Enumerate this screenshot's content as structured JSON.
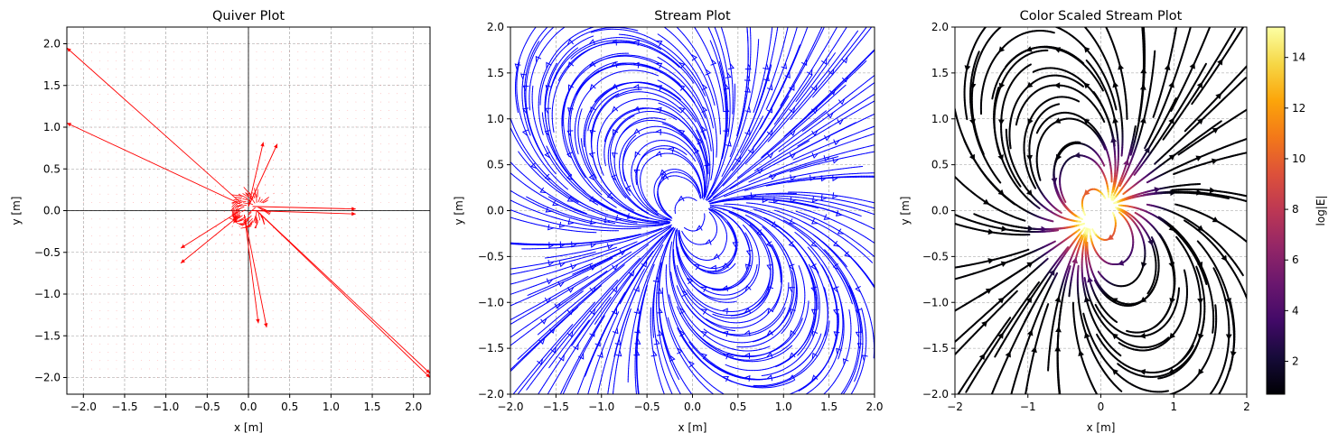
{
  "chart_data": [
    {
      "type": "quiver",
      "title": "Quiver Plot",
      "xlabel": "x [m]",
      "ylabel": "y [m]",
      "xlim": [
        -2.2,
        2.2
      ],
      "ylim": [
        -2.2,
        2.2
      ],
      "xticks": [
        "−2.0",
        "−1.5",
        "−1.0",
        "−0.5",
        "0.0",
        "0.5",
        "1.0",
        "1.5",
        "2.0"
      ],
      "yticks": [
        "−2.0",
        "−1.5",
        "−1.0",
        "−0.5",
        "0.0",
        "0.5",
        "1.0",
        "1.5",
        "2.0"
      ],
      "grid": true,
      "color": "#ff0000",
      "field": "electric dipole, positive charge near (0.1, 0.05), negative charge near (-0.15, -0.12)",
      "notable_arrows": [
        {
          "from": [
            -0.1,
            0.1
          ],
          "to": [
            -2.2,
            1.95
          ]
        },
        {
          "from": [
            -0.1,
            0.08
          ],
          "to": [
            -2.2,
            1.05
          ]
        },
        {
          "from": [
            0.1,
            0.0
          ],
          "to": [
            2.2,
            -1.95
          ]
        },
        {
          "from": [
            0.12,
            -0.02
          ],
          "to": [
            2.2,
            -2.0
          ]
        },
        {
          "from": [
            0.05,
            0.05
          ],
          "to": [
            1.3,
            0.02
          ]
        },
        {
          "from": [
            0.05,
            0.0
          ],
          "to": [
            1.3,
            -0.04
          ]
        },
        {
          "from": [
            0.0,
            0.05
          ],
          "to": [
            0.35,
            0.8
          ]
        },
        {
          "from": [
            0.0,
            0.05
          ],
          "to": [
            0.18,
            0.82
          ]
        },
        {
          "from": [
            -0.05,
            -0.05
          ],
          "to": [
            0.22,
            -1.4
          ]
        },
        {
          "from": [
            -0.05,
            -0.05
          ],
          "to": [
            0.12,
            -1.35
          ]
        },
        {
          "from": [
            -0.1,
            0.0
          ],
          "to": [
            -0.82,
            -0.45
          ]
        },
        {
          "from": [
            -0.1,
            -0.05
          ],
          "to": [
            -0.82,
            -0.63
          ]
        }
      ]
    },
    {
      "type": "streamplot",
      "title": "Stream Plot",
      "xlabel": "x [m]",
      "ylabel": "y [m]",
      "xlim": [
        -2.0,
        2.0
      ],
      "ylim": [
        -2.0,
        2.0
      ],
      "xticks": [
        "−2.0",
        "−1.5",
        "−1.0",
        "−0.5",
        "0.0",
        "0.5",
        "1.0",
        "1.5",
        "2.0"
      ],
      "yticks": [
        "−2.0",
        "−1.5",
        "−1.0",
        "−0.5",
        "0.0",
        "0.5",
        "1.0",
        "1.5",
        "2.0"
      ],
      "grid": true,
      "color": "#0000ff"
    },
    {
      "type": "streamplot",
      "title": "Color Scaled Stream Plot",
      "xlabel": "x [m]",
      "ylabel": "y [m]",
      "xlim": [
        -2,
        2
      ],
      "ylim": [
        -2,
        2
      ],
      "xticks": [
        "−2",
        "−1",
        "0",
        "1",
        "2"
      ],
      "yticks": [
        "−2.0",
        "−1.5",
        "−1.0",
        "−0.5",
        "0.0",
        "0.5",
        "1.0",
        "1.5",
        "2.0"
      ],
      "grid": true,
      "colormap": "inferno",
      "colorbar": {
        "label": "log|E|",
        "range": [
          0.7,
          15.2
        ],
        "ticks": [
          "2",
          "4",
          "6",
          "8",
          "10",
          "12",
          "14"
        ]
      }
    }
  ]
}
